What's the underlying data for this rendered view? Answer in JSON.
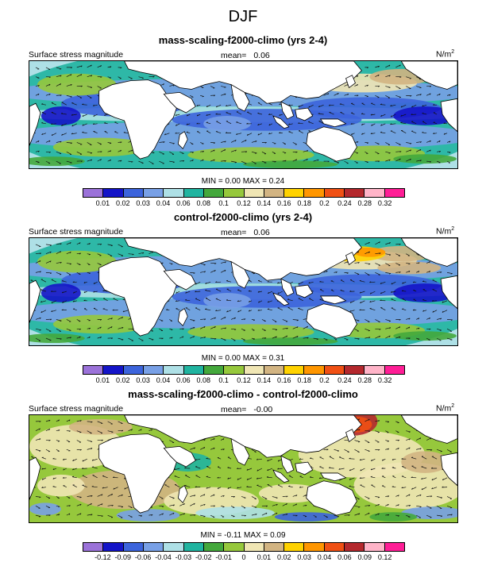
{
  "title": "DJF",
  "panels": [
    {
      "title": "mass-scaling-f2000-climo (yrs 2-4)",
      "left_label": "Surface stress magnitude",
      "mean_label": "mean=",
      "mean_value": "0.06",
      "units": "N/m",
      "units_exp": "2",
      "min_label": "MIN =",
      "min_value": "0.00",
      "max_label": "MAX =",
      "max_value": "0.24",
      "kind": "absolute",
      "colorbar": {
        "colors": [
          "#9b72d9",
          "#1414c8",
          "#3c64dc",
          "#78a0e6",
          "#aee0e6",
          "#20b4a0",
          "#44a83c",
          "#96c83c",
          "#f0e6b4",
          "#d2b482",
          "#ffd200",
          "#ff9600",
          "#f05014",
          "#b4282d",
          "#ffb4c8",
          "#ff1e96"
        ],
        "ticks": [
          "0.01",
          "0.02",
          "0.03",
          "0.04",
          "0.06",
          "0.08",
          "0.1",
          "0.12",
          "0.14",
          "0.16",
          "0.18",
          "0.2",
          "0.24",
          "0.28",
          "0.32"
        ]
      }
    },
    {
      "title": "control-f2000-climo (yrs 2-4)",
      "left_label": "Surface stress magnitude",
      "mean_label": "mean=",
      "mean_value": "0.06",
      "units": "N/m",
      "units_exp": "2",
      "min_label": "MIN =",
      "min_value": "0.00",
      "max_label": "MAX =",
      "max_value": "0.31",
      "kind": "absolute",
      "colorbar": {
        "colors": [
          "#9b72d9",
          "#1414c8",
          "#3c64dc",
          "#78a0e6",
          "#aee0e6",
          "#20b4a0",
          "#44a83c",
          "#96c83c",
          "#f0e6b4",
          "#d2b482",
          "#ffd200",
          "#ff9600",
          "#f05014",
          "#b4282d",
          "#ffb4c8",
          "#ff1e96"
        ],
        "ticks": [
          "0.01",
          "0.02",
          "0.03",
          "0.04",
          "0.06",
          "0.08",
          "0.1",
          "0.12",
          "0.14",
          "0.16",
          "0.18",
          "0.2",
          "0.24",
          "0.28",
          "0.32"
        ]
      }
    },
    {
      "title": "mass-scaling-f2000-climo - control-f2000-climo",
      "left_label": "Surface stress magnitude",
      "mean_label": "mean=",
      "mean_value": "-0.00",
      "units": "N/m",
      "units_exp": "2",
      "min_label": "MIN =",
      "min_value": "-0.11",
      "max_label": "MAX =",
      "max_value": "0.09",
      "kind": "difference",
      "colorbar": {
        "colors": [
          "#9b72d9",
          "#1414c8",
          "#3c64dc",
          "#78a0e6",
          "#aee0e6",
          "#20b4a0",
          "#44a83c",
          "#96c83c",
          "#f0e6b4",
          "#d2b482",
          "#ffd200",
          "#ff9600",
          "#f05014",
          "#b4282d",
          "#ffb4c8",
          "#ff1e96"
        ],
        "ticks": [
          "-0.12",
          "-0.09",
          "-0.06",
          "-0.04",
          "-0.03",
          "-0.02",
          "-0.01",
          "0",
          "0.01",
          "0.02",
          "0.03",
          "0.04",
          "0.06",
          "0.09",
          "0.12"
        ]
      }
    }
  ]
}
